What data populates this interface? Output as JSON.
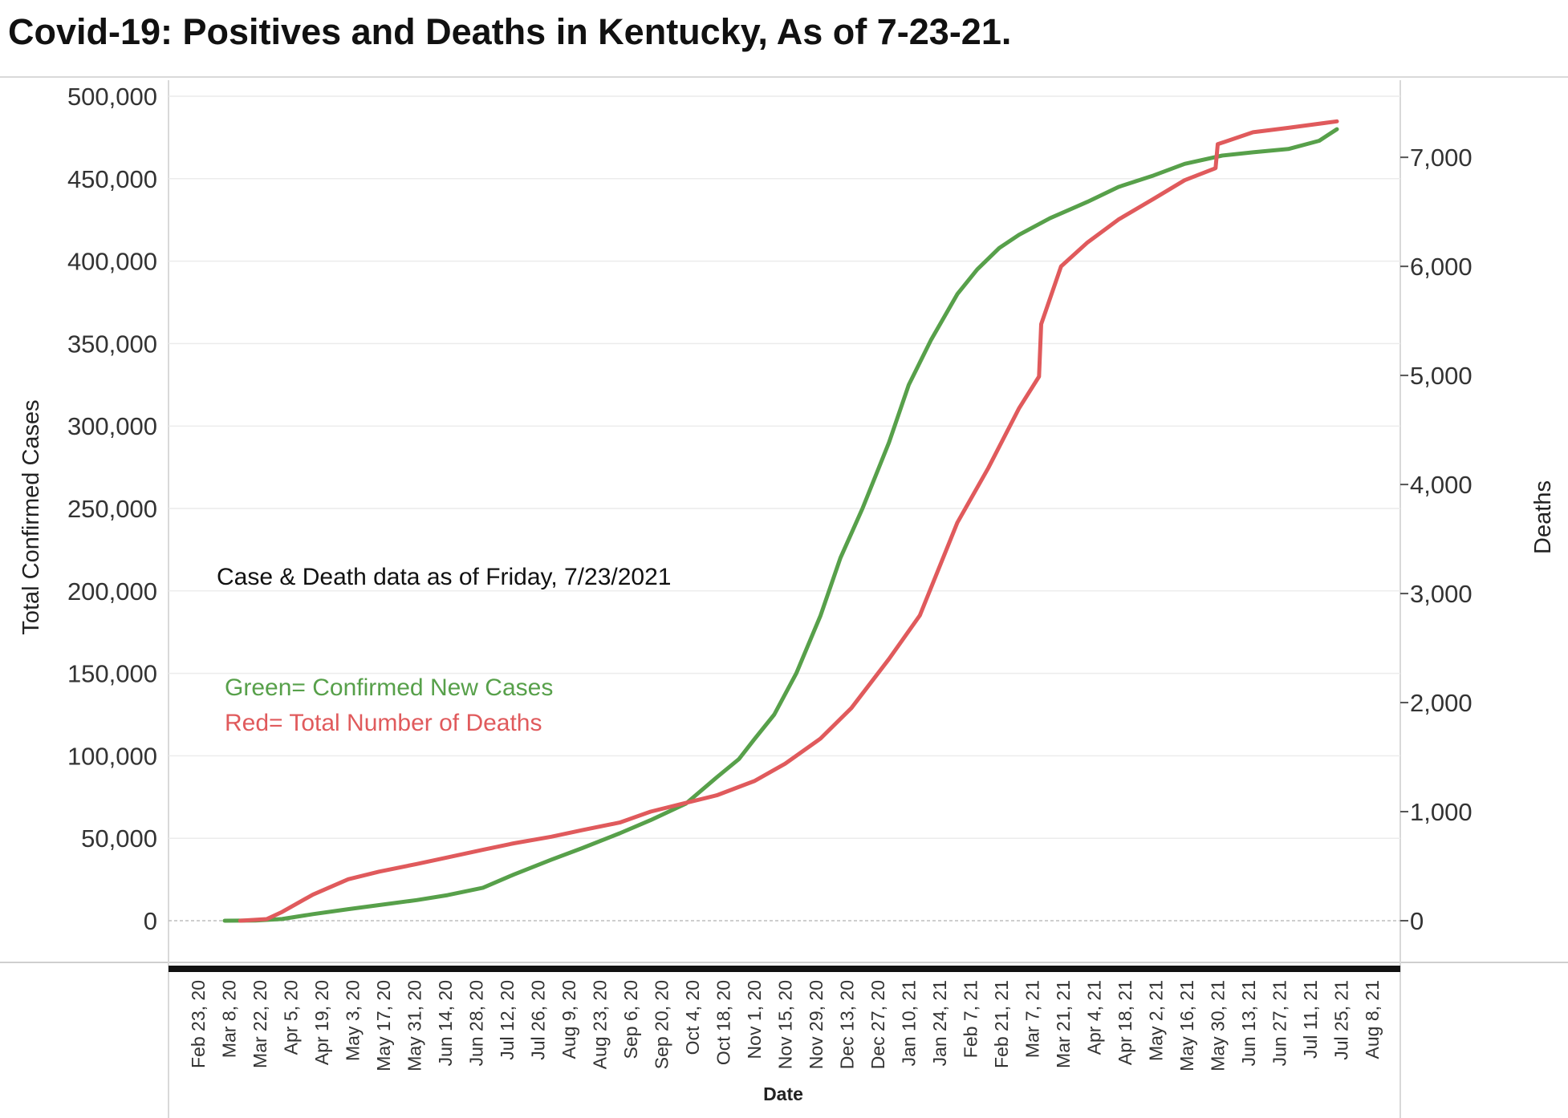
{
  "title": "Covid-19: Positives and Deaths in Kentucky,  As of 7-23-21.",
  "annotations": {
    "note": "Case & Death data as of Friday,  7/23/2021",
    "legend_green": "Green= Confirmed New Cases",
    "legend_red": "Red= Total Number of Deaths"
  },
  "colors": {
    "cases": "#57a04a",
    "deaths": "#e05a5c",
    "grid": "#ececec",
    "zero_line": "#bdbdbd"
  },
  "chart_data": {
    "type": "line",
    "xlabel": "Date",
    "ylabel_left": "Total Confirmed Cases",
    "ylabel_right": "Deaths",
    "x_tick_labels": [
      "Feb 23, 20",
      "Mar 8, 20",
      "Mar 22, 20",
      "Apr 5, 20",
      "Apr 19, 20",
      "May 3, 20",
      "May 17, 20",
      "May 31, 20",
      "Jun 14, 20",
      "Jun 28, 20",
      "Jul 12, 20",
      "Jul 26, 20",
      "Aug 9, 20",
      "Aug 23, 20",
      "Sep 6, 20",
      "Sep 20, 20",
      "Oct 4, 20",
      "Oct 18, 20",
      "Nov 1, 20",
      "Nov 15, 20",
      "Nov 29, 20",
      "Dec 13, 20",
      "Dec 27, 20",
      "Jan 10, 21",
      "Jan 24, 21",
      "Feb 7, 21",
      "Feb 21, 21",
      "Mar 7, 21",
      "Mar 21, 21",
      "Apr 4, 21",
      "Apr 18, 21",
      "May 2, 21",
      "May 16, 21",
      "May 30, 21",
      "Jun 13, 21",
      "Jun 27, 21",
      "Jul 11, 21",
      "Jul 25, 21",
      "Aug 8, 21"
    ],
    "y_left_ticks": [
      "0",
      "50,000",
      "100,000",
      "150,000",
      "200,000",
      "250,000",
      "300,000",
      "350,000",
      "400,000",
      "450,000",
      "500,000"
    ],
    "y_right_ticks": [
      "0",
      "1,000",
      "2,000",
      "3,000",
      "4,000",
      "5,000",
      "6,000",
      "7,000"
    ],
    "ylim_left": [
      0,
      500000
    ],
    "ylim_right": [
      0,
      7560
    ],
    "grid": true,
    "series": [
      {
        "name": "Green= Confirmed New Cases",
        "axis": "left",
        "x": [
          "2020-03-06",
          "2020-03-20",
          "2020-04-01",
          "2020-04-15",
          "2020-05-01",
          "2020-05-15",
          "2020-06-01",
          "2020-06-15",
          "2020-07-01",
          "2020-07-15",
          "2020-08-01",
          "2020-08-15",
          "2020-09-01",
          "2020-09-15",
          "2020-10-01",
          "2020-10-15",
          "2020-10-25",
          "2020-11-01",
          "2020-11-10",
          "2020-11-20",
          "2020-12-01",
          "2020-12-10",
          "2020-12-20",
          "2021-01-01",
          "2021-01-10",
          "2021-01-20",
          "2021-02-01",
          "2021-02-10",
          "2021-02-20",
          "2021-03-01",
          "2021-03-15",
          "2021-04-01",
          "2021-04-15",
          "2021-05-01",
          "2021-05-15",
          "2021-06-01",
          "2021-06-15",
          "2021-07-01",
          "2021-07-15",
          "2021-07-23"
        ],
        "values": [
          0,
          150,
          1000,
          4000,
          7000,
          9500,
          12500,
          15500,
          20000,
          28000,
          37000,
          44000,
          53000,
          61000,
          71000,
          87000,
          98000,
          110000,
          125000,
          150000,
          185000,
          220000,
          250000,
          290000,
          325000,
          352000,
          380000,
          395000,
          408000,
          416000,
          426000,
          436000,
          445000,
          452000,
          459000,
          464000,
          466000,
          468000,
          473000,
          480000
        ]
      },
      {
        "name": "Red= Total Number of Deaths",
        "axis": "right",
        "x": [
          "2020-03-13",
          "2020-03-25",
          "2020-04-01",
          "2020-04-15",
          "2020-05-01",
          "2020-05-15",
          "2020-06-01",
          "2020-06-15",
          "2020-07-01",
          "2020-07-15",
          "2020-08-01",
          "2020-08-15",
          "2020-09-01",
          "2020-09-15",
          "2020-10-01",
          "2020-10-15",
          "2020-11-01",
          "2020-11-15",
          "2020-12-01",
          "2020-12-15",
          "2021-01-01",
          "2021-01-15",
          "2021-02-01",
          "2021-02-15",
          "2021-03-01",
          "2021-03-10",
          "2021-03-11",
          "2021-03-20",
          "2021-04-01",
          "2021-04-15",
          "2021-05-01",
          "2021-05-15",
          "2021-05-29",
          "2021-05-30",
          "2021-06-15",
          "2021-07-01",
          "2021-07-23"
        ],
        "values": [
          0,
          15,
          80,
          240,
          380,
          450,
          520,
          580,
          650,
          710,
          770,
          830,
          900,
          1000,
          1080,
          1150,
          1280,
          1440,
          1670,
          1950,
          2400,
          2800,
          3650,
          4150,
          4700,
          4990,
          5470,
          6000,
          6220,
          6430,
          6620,
          6790,
          6900,
          7120,
          7230,
          7270,
          7330
        ]
      }
    ]
  }
}
